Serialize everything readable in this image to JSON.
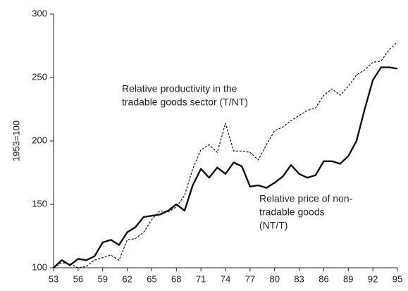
{
  "chart_data": {
    "type": "line",
    "ylabel": "1953=100",
    "x": [
      53,
      54,
      55,
      56,
      57,
      58,
      59,
      60,
      61,
      62,
      63,
      64,
      65,
      66,
      67,
      68,
      69,
      70,
      71,
      72,
      73,
      74,
      75,
      76,
      77,
      78,
      79,
      80,
      81,
      82,
      83,
      84,
      85,
      86,
      87,
      88,
      89,
      90,
      91,
      92,
      93,
      94,
      95
    ],
    "series": [
      {
        "color": "#111111",
        "style": "solid",
        "values": [
          100,
          106,
          102,
          107,
          106,
          109,
          120,
          122,
          118,
          128,
          132,
          140,
          141,
          142,
          145,
          150,
          145,
          165,
          178,
          171,
          179,
          174,
          183,
          180,
          164,
          165,
          163,
          167,
          172,
          181,
          174,
          171,
          173,
          184,
          184,
          182,
          188,
          200,
          225,
          248,
          258,
          258,
          257
        ]
      },
      {
        "color": "#111111",
        "style": "dashed",
        "values": [
          100,
          104,
          103,
          100,
          101,
          106,
          108,
          110,
          106,
          122,
          123,
          128,
          138,
          145,
          144,
          148,
          157,
          178,
          193,
          197,
          191,
          214,
          192,
          192,
          191,
          185,
          197,
          208,
          211,
          216,
          220,
          224,
          226,
          236,
          241,
          236,
          243,
          252,
          256,
          262,
          263,
          272,
          278
        ]
      }
    ],
    "annotations": [
      {
        "lines": [
          "Relative productivity in the",
          "tradable goods sector (T/NT)"
        ]
      },
      {
        "lines": [
          "Relative price of non-",
          "tradable goods",
          "(NT/T)"
        ]
      }
    ],
    "xlim": [
      53,
      95
    ],
    "ylim": [
      100,
      300
    ],
    "xticks": [
      53,
      56,
      59,
      62,
      65,
      68,
      71,
      74,
      77,
      80,
      83,
      86,
      89,
      92,
      95
    ],
    "yticks": [
      100,
      150,
      200,
      250,
      300
    ],
    "grid": false
  }
}
